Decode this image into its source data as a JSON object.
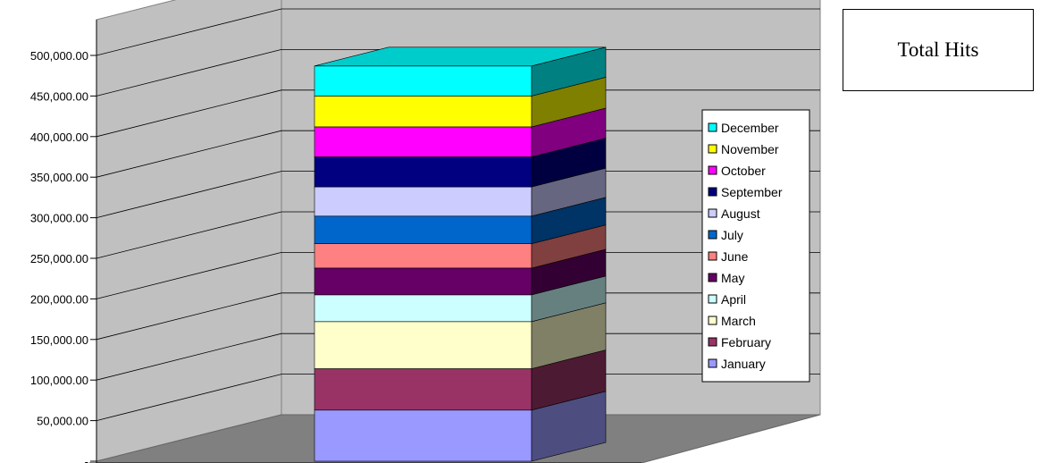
{
  "chart_data": {
    "type": "bar",
    "subtype": "stacked-3d-column",
    "title": "Total Hits",
    "ylim": [
      0,
      500000
    ],
    "y_ticks": [
      "-",
      "50,000.00",
      "100,000.00",
      "150,000.00",
      "200,000.00",
      "250,000.00",
      "300,000.00",
      "350,000.00",
      "400,000.00",
      "450,000.00",
      "500,000.00"
    ],
    "grid": true,
    "legend_position": "right",
    "series": [
      {
        "name": "January",
        "value": 63000,
        "color": "#9999ff"
      },
      {
        "name": "February",
        "value": 51000,
        "color": "#993366"
      },
      {
        "name": "March",
        "value": 58000,
        "color": "#ffffcc"
      },
      {
        "name": "April",
        "value": 33000,
        "color": "#ccffff"
      },
      {
        "name": "May",
        "value": 33000,
        "color": "#660066"
      },
      {
        "name": "June",
        "value": 30000,
        "color": "#ff8080"
      },
      {
        "name": "July",
        "value": 34000,
        "color": "#0066cc"
      },
      {
        "name": "August",
        "value": 36000,
        "color": "#ccccff"
      },
      {
        "name": "September",
        "value": 37000,
        "color": "#000080"
      },
      {
        "name": "October",
        "value": 37000,
        "color": "#ff00ff"
      },
      {
        "name": "November",
        "value": 38000,
        "color": "#ffff00"
      },
      {
        "name": "December",
        "value": 37000,
        "color": "#00ffff"
      }
    ]
  }
}
